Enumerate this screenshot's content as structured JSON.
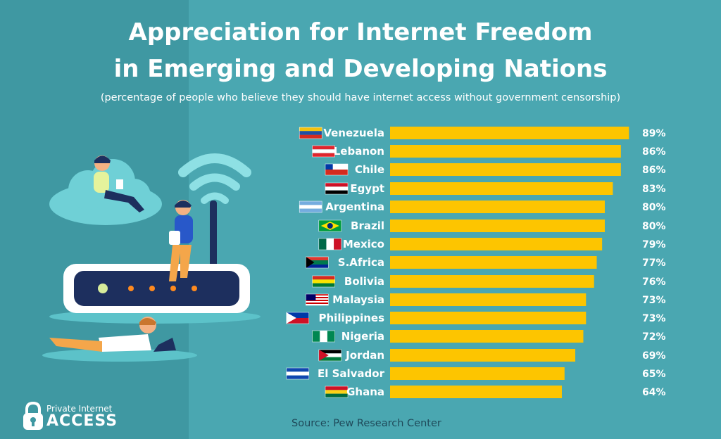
{
  "title_line1": "Appreciation for Internet Freedom",
  "title_line2": "in Emerging and Developing Nations",
  "subtitle": "(percentage of people who believe they should have internet access without government censorship)",
  "source": "Source: Pew Research Center",
  "brand": {
    "small": "Private Internet",
    "big": "ACCESS"
  },
  "colors": {
    "background": "#4aa7b1",
    "panel": "#3f98a2",
    "bar": "#fdc500",
    "text": "#ffffff"
  },
  "chart_data": {
    "type": "bar",
    "orientation": "horizontal",
    "title": "Appreciation for Internet Freedom in Emerging and Developing Nations",
    "subtitle": "(percentage of people who believe they should have internet access without government censorship)",
    "categories": [
      "Venezuela",
      "Lebanon",
      "Chile",
      "Egypt",
      "Argentina",
      "Brazil",
      "Mexico",
      "S.Africa",
      "Bolivia",
      "Malaysia",
      "Philippines",
      "Nigeria",
      "Jordan",
      "El Salvador",
      "Ghana"
    ],
    "values": [
      89,
      86,
      86,
      83,
      80,
      80,
      79,
      77,
      76,
      73,
      73,
      72,
      69,
      65,
      64
    ],
    "labels": [
      "89%",
      "86%",
      "86%",
      "83%",
      "80%",
      "80%",
      "79%",
      "77%",
      "76%",
      "73%",
      "73%",
      "72%",
      "69%",
      "65%",
      "64%"
    ],
    "xlabel": "",
    "ylabel": "",
    "grid": false,
    "legend": "none"
  }
}
